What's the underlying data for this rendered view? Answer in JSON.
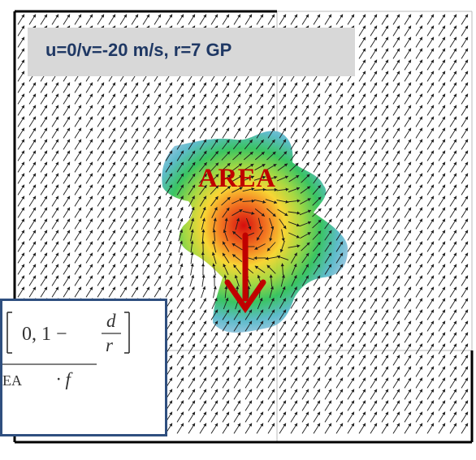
{
  "label": {
    "text": "u=0/v=-20 m/s, r=7 GP"
  },
  "area": {
    "text": "AREA",
    "color": "#c00000"
  },
  "formula": {
    "bracket_content": "0, 1 − ",
    "num_d": "d",
    "den_r": "r",
    "lower_text": "EA",
    "times_f": "· f"
  },
  "colors": {
    "frame": "#000000",
    "grid": "#bbbbbb",
    "arrow": "#1a1a1a",
    "label_bg": "#d8d8d8",
    "label_text": "#1f3864",
    "formula_border": "#2f4f7f",
    "motion_arrow": "#c00000"
  }
}
